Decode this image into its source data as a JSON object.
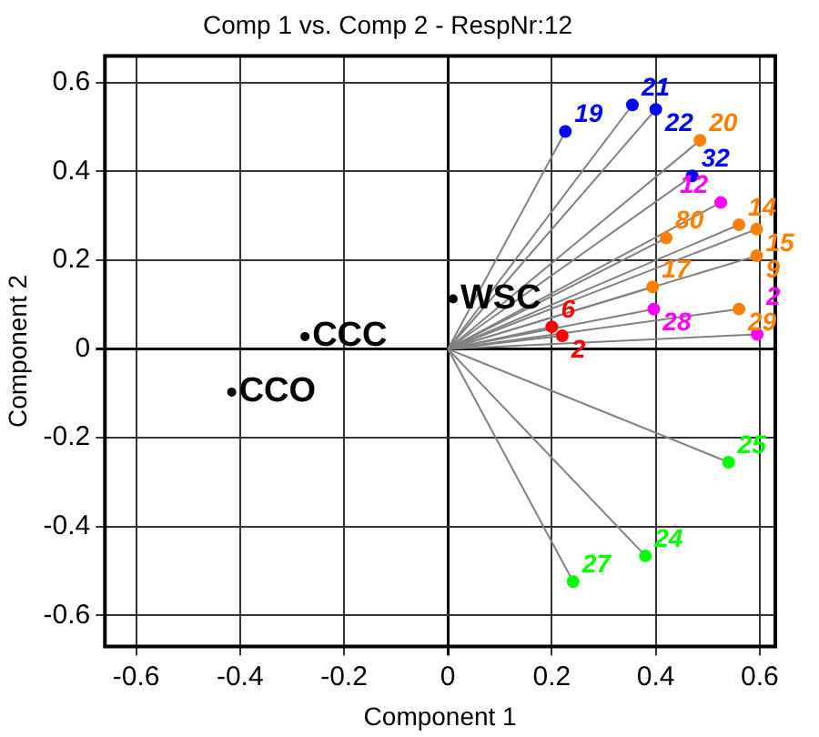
{
  "chart_data": {
    "type": "scatter",
    "title": "Comp 1 vs. Comp 2 - RespNr:12",
    "xlabel": "Component 1",
    "ylabel": "Component 2",
    "xlim": [
      -0.66,
      0.63
    ],
    "ylim": [
      -0.67,
      0.66
    ],
    "xticks": [
      -0.6,
      -0.4,
      -0.2,
      0,
      0.2,
      0.4,
      0.6
    ],
    "yticks": [
      -0.6,
      -0.4,
      -0.2,
      0,
      0.2,
      0.4,
      0.6
    ],
    "grid": true,
    "legend": false,
    "marker": "circle",
    "series": [
      {
        "name": "19",
        "color": "#0000ff",
        "x": [
          0.226
        ],
        "values": [
          0.49
        ]
      },
      {
        "name": "21",
        "color": "#0000ff",
        "x": [
          0.355
        ],
        "values": [
          0.55
        ]
      },
      {
        "name": "22",
        "color": "#0000ff",
        "x": [
          0.4
        ],
        "values": [
          0.54
        ]
      },
      {
        "name": "32",
        "color": "#0000ff",
        "x": [
          0.47
        ],
        "values": [
          0.39
        ]
      },
      {
        "name": "20",
        "color": "#ff8000",
        "x": [
          0.485
        ],
        "values": [
          0.47
        ]
      },
      {
        "name": "80",
        "color": "#ff8000",
        "x": [
          0.42
        ],
        "values": [
          0.25
        ]
      },
      {
        "name": "14",
        "color": "#ff8000",
        "x": [
          0.56
        ],
        "values": [
          0.28
        ]
      },
      {
        "name": "15",
        "color": "#ff8000",
        "x": [
          0.594
        ],
        "values": [
          0.27
        ]
      },
      {
        "name": "9",
        "color": "#ff8000",
        "x": [
          0.594
        ],
        "values": [
          0.21
        ]
      },
      {
        "name": "17",
        "color": "#ff8000",
        "x": [
          0.394
        ],
        "values": [
          0.14
        ]
      },
      {
        "name": "29",
        "color": "#ff8000",
        "x": [
          0.56
        ],
        "values": [
          0.09
        ]
      },
      {
        "name": "12",
        "color": "#ff00ff",
        "x": [
          0.525
        ],
        "values": [
          0.33
        ]
      },
      {
        "name": "28",
        "color": "#ff00ff",
        "x": [
          0.396
        ],
        "values": [
          0.09
        ]
      },
      {
        "name": "2",
        "color": "#ff00ff",
        "x": [
          0.595
        ],
        "values": [
          0.033
        ]
      },
      {
        "name": "6",
        "color": "#ff0000",
        "x": [
          0.2
        ],
        "values": [
          0.05
        ]
      },
      {
        "name": "2",
        "color": "#ff0000",
        "x": [
          0.22
        ],
        "values": [
          0.03
        ]
      },
      {
        "name": "25",
        "color": "#00ff00",
        "x": [
          0.54
        ],
        "values": [
          -0.255
        ]
      },
      {
        "name": "24",
        "color": "#00ff00",
        "x": [
          0.38
        ],
        "values": [
          -0.466
        ]
      },
      {
        "name": "27",
        "color": "#00ff00",
        "x": [
          0.241
        ],
        "values": [
          -0.524
        ]
      },
      {
        "name": "WSC",
        "color": "#000000",
        "x": [
          0.01
        ],
        "values": [
          0.113
        ]
      },
      {
        "name": "CCC",
        "color": "#000000",
        "x": [
          -0.275
        ],
        "values": [
          0.028
        ]
      },
      {
        "name": "CCO",
        "color": "#000000",
        "x": [
          -0.416
        ],
        "values": [
          -0.097
        ]
      }
    ]
  }
}
